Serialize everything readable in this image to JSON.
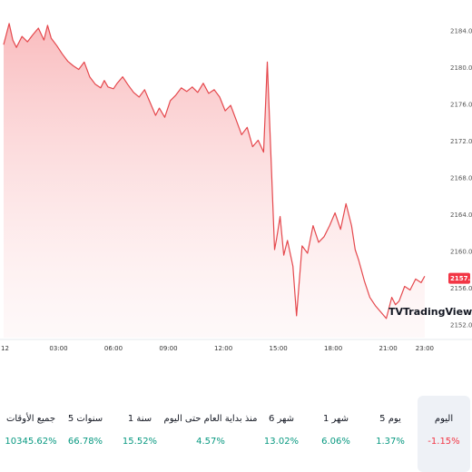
{
  "chart_data": {
    "type": "area",
    "y_ticks": [
      "2184.00",
      "2180.00",
      "2176.00",
      "2172.00",
      "2168.00",
      "2164.00",
      "2160.00",
      "2156.00",
      "2152.00"
    ],
    "ylim": [
      2151.5,
      2185
    ],
    "x_ticks": [
      "12",
      "03:00",
      "06:00",
      "09:00",
      "12:00",
      "15:00",
      "18:00",
      "21:00",
      "23:00"
    ],
    "x_tick_hours": [
      0,
      3,
      6,
      9,
      12,
      15,
      18,
      21,
      23
    ],
    "xlim": [
      0,
      23.3
    ],
    "last_price": "2157.08",
    "line_color": "#e5484d",
    "x": [
      0,
      0.3,
      0.5,
      0.7,
      1.0,
      1.3,
      1.6,
      1.9,
      2.2,
      2.4,
      2.6,
      2.9,
      3.2,
      3.5,
      3.8,
      4.1,
      4.4,
      4.7,
      5.0,
      5.3,
      5.5,
      5.7,
      6.0,
      6.2,
      6.5,
      6.8,
      7.1,
      7.4,
      7.7,
      8.0,
      8.3,
      8.5,
      8.8,
      9.1,
      9.4,
      9.7,
      10.0,
      10.3,
      10.6,
      10.9,
      11.2,
      11.5,
      11.8,
      12.1,
      12.4,
      12.7,
      13.0,
      13.3,
      13.6,
      13.9,
      14.2,
      14.4,
      14.6,
      14.8,
      14.9,
      15.1,
      15.3,
      15.5,
      15.8,
      16.0,
      16.3,
      16.6,
      16.9,
      17.2,
      17.5,
      17.8,
      18.1,
      18.4,
      18.7,
      19.0,
      19.2,
      19.4,
      19.7,
      20.0,
      20.3,
      20.6,
      20.9,
      21.2,
      21.4,
      21.6,
      21.9,
      22.2,
      22.5,
      22.8,
      23.0
    ],
    "y": [
      2182.5,
      2184.8,
      2183.0,
      2182.2,
      2183.4,
      2182.8,
      2183.6,
      2184.3,
      2183.0,
      2184.6,
      2183.2,
      2182.4,
      2181.5,
      2180.7,
      2180.2,
      2179.8,
      2180.6,
      2179.0,
      2178.2,
      2177.8,
      2178.6,
      2177.9,
      2177.7,
      2178.3,
      2179.0,
      2178.1,
      2177.3,
      2176.8,
      2177.6,
      2176.2,
      2174.8,
      2175.6,
      2174.6,
      2176.4,
      2177.0,
      2177.8,
      2177.4,
      2177.9,
      2177.3,
      2178.3,
      2177.2,
      2177.6,
      2176.8,
      2175.3,
      2175.9,
      2174.3,
      2172.7,
      2173.5,
      2171.4,
      2172.1,
      2170.8,
      2180.6,
      2170.4,
      2160.2,
      2161.3,
      2163.8,
      2159.6,
      2161.2,
      2158.4,
      2153.0,
      2160.6,
      2159.8,
      2162.8,
      2161.0,
      2161.6,
      2162.8,
      2164.2,
      2162.4,
      2165.2,
      2162.8,
      2160.2,
      2159.0,
      2156.8,
      2155.0,
      2154.1,
      2153.4,
      2152.7,
      2155.0,
      2154.2,
      2154.6,
      2156.2,
      2155.8,
      2157.0,
      2156.6,
      2157.3
    ]
  },
  "watermark": {
    "logo_mark": "TV",
    "brand": "TradingView"
  },
  "periods": [
    {
      "label": "اليوم",
      "value": "-1.15%",
      "status": "neg",
      "active": true
    },
    {
      "label": "5 يوم",
      "value": "1.37%",
      "status": "pos"
    },
    {
      "label": "1 شهر",
      "value": "6.06%",
      "status": "pos"
    },
    {
      "label": "6 شهر",
      "value": "13.02%",
      "status": "pos"
    },
    {
      "label": "منذ بداية العام حتى اليوم",
      "value": "4.57%",
      "status": "pos"
    },
    {
      "label": "1 سنة",
      "value": "15.52%",
      "status": "pos"
    },
    {
      "label": "5 سنوات",
      "value": "66.78%",
      "status": "pos"
    },
    {
      "label": "جميع الأوقات",
      "value": "10345.62%",
      "status": "pos"
    }
  ]
}
